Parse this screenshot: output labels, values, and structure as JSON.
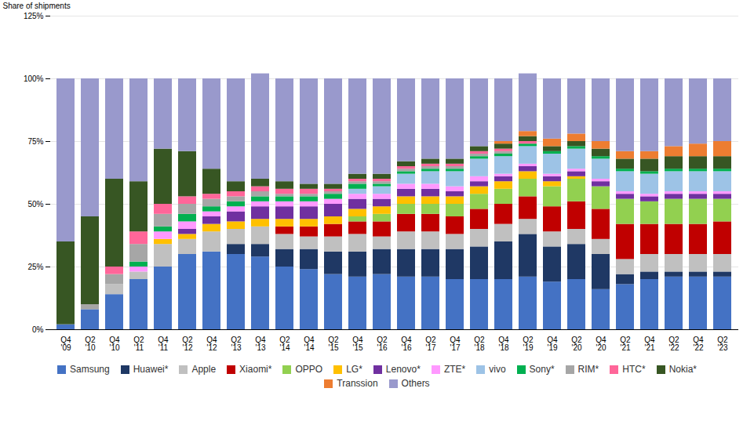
{
  "chart_data": {
    "type": "bar",
    "stacked": true,
    "categories": [
      "Q4\n'09",
      "Q2\n'10",
      "Q4\n'10",
      "Q2\n'11",
      "Q4\n'11",
      "Q2\n'12",
      "Q4\n'12",
      "Q2\n'13",
      "Q4\n'13",
      "Q2\n'14",
      "Q4\n'14",
      "Q2\n'15",
      "Q4\n'15",
      "Q2\n'16",
      "Q4\n'16",
      "Q2\n'17",
      "Q4\n'17",
      "Q2\n'18",
      "Q4\n'18",
      "Q2\n'19",
      "Q4\n'19",
      "Q2\n'20",
      "Q4\n'20",
      "Q2\n'21",
      "Q4\n'21",
      "Q2\n'22",
      "Q4\n'22",
      "Q2\n'23"
    ],
    "series": [
      {
        "name": "Samsung",
        "color": "#4472C4",
        "values": [
          2,
          8,
          14,
          20,
          25,
          30,
          31,
          30,
          29,
          25,
          24,
          22,
          21,
          22,
          21,
          21,
          20,
          20,
          20,
          21,
          19,
          20,
          16,
          18,
          20,
          21,
          21,
          21
        ]
      },
      {
        "name": "Huawei*",
        "color": "#1F3864",
        "values": [
          0,
          0,
          0,
          0,
          0,
          0,
          0,
          4,
          5,
          7,
          8,
          9,
          10,
          10,
          11,
          11,
          12,
          13,
          15,
          17,
          14,
          14,
          14,
          4,
          3,
          2,
          2,
          2
        ]
      },
      {
        "name": "Apple",
        "color": "#C0C0C0",
        "values": [
          0,
          0,
          4,
          3,
          9,
          6,
          8,
          6,
          7,
          6,
          5,
          6,
          7,
          5,
          7,
          7,
          6,
          7,
          7,
          6,
          6,
          6,
          6,
          6,
          7,
          7,
          7,
          7
        ]
      },
      {
        "name": "Xiaomi*",
        "color": "#C00000",
        "values": [
          0,
          0,
          0,
          0,
          0,
          0,
          0,
          0,
          0,
          3,
          4,
          5,
          5,
          6,
          7,
          7,
          7,
          8,
          8,
          9,
          10,
          11,
          12,
          14,
          12,
          12,
          12,
          13
        ]
      },
      {
        "name": "OPPO",
        "color": "#92D050",
        "values": [
          0,
          0,
          0,
          0,
          0,
          0,
          0,
          0,
          0,
          0,
          0,
          0,
          2,
          3,
          4,
          4,
          5,
          6,
          6,
          7,
          8,
          9,
          9,
          10,
          9,
          10,
          10,
          9
        ]
      },
      {
        "name": "LG*",
        "color": "#FFC000",
        "values": [
          0,
          0,
          0,
          0,
          2,
          2,
          3,
          3,
          3,
          3,
          3,
          3,
          3,
          3,
          3,
          3,
          3,
          3,
          3,
          3,
          2,
          1,
          0,
          0,
          0,
          0,
          0,
          0
        ]
      },
      {
        "name": "Lenovo*",
        "color": "#7030A0",
        "values": [
          0,
          0,
          0,
          0,
          0,
          2,
          3,
          4,
          5,
          5,
          5,
          5,
          4,
          3,
          3,
          3,
          2,
          2,
          2,
          2,
          2,
          2,
          2,
          2,
          2,
          2,
          2,
          2
        ]
      },
      {
        "name": "ZTE*",
        "color": "#FF99FF",
        "values": [
          0,
          0,
          0,
          2,
          3,
          3,
          2,
          2,
          2,
          2,
          2,
          2,
          2,
          2,
          2,
          2,
          2,
          2,
          1,
          1,
          1,
          1,
          1,
          1,
          1,
          1,
          1,
          1
        ]
      },
      {
        "name": "vivo",
        "color": "#9DC3E6",
        "values": [
          0,
          0,
          0,
          0,
          0,
          0,
          0,
          0,
          0,
          0,
          0,
          0,
          2,
          3,
          4,
          5,
          6,
          7,
          7,
          7,
          8,
          8,
          8,
          8,
          8,
          8,
          8,
          8
        ]
      },
      {
        "name": "Sony*",
        "color": "#00B050",
        "values": [
          0,
          0,
          0,
          2,
          2,
          3,
          2,
          2,
          2,
          2,
          2,
          2,
          2,
          1,
          1,
          1,
          1,
          1,
          1,
          1,
          1,
          1,
          1,
          1,
          1,
          1,
          1,
          1
        ]
      },
      {
        "name": "RIM*",
        "color": "#A6A6A6",
        "values": [
          0,
          2,
          4,
          7,
          5,
          4,
          3,
          2,
          2,
          1,
          1,
          1,
          1,
          1,
          1,
          1,
          1,
          1,
          1,
          0,
          0,
          0,
          0,
          0,
          0,
          0,
          0,
          0
        ]
      },
      {
        "name": "HTC*",
        "color": "#FF6699",
        "values": [
          0,
          0,
          3,
          5,
          4,
          3,
          2,
          2,
          2,
          2,
          2,
          1,
          1,
          1,
          1,
          1,
          1,
          1,
          1,
          1,
          0,
          0,
          0,
          0,
          0,
          0,
          0,
          0
        ]
      },
      {
        "name": "Nokia*",
        "color": "#375623",
        "values": [
          33,
          35,
          35,
          20,
          22,
          18,
          10,
          4,
          3,
          3,
          2,
          2,
          2,
          2,
          2,
          2,
          2,
          2,
          2,
          2,
          2,
          2,
          3,
          4,
          5,
          5,
          5,
          5
        ]
      },
      {
        "name": "Transsion",
        "color": "#ED7D31",
        "values": [
          0,
          0,
          0,
          0,
          0,
          0,
          0,
          0,
          0,
          0,
          0,
          0,
          0,
          0,
          0,
          0,
          0,
          0,
          1,
          2,
          3,
          3,
          3,
          3,
          3,
          4,
          5,
          6
        ]
      },
      {
        "name": "Others",
        "color": "#9999CC",
        "values": [
          65,
          55,
          40,
          41,
          28,
          29,
          36,
          41,
          42,
          41,
          42,
          42,
          38,
          38,
          33,
          32,
          32,
          27,
          25,
          23,
          24,
          22,
          25,
          29,
          29,
          27,
          26,
          25
        ]
      }
    ],
    "ylabel": "Share of shipments",
    "ylim": [
      0,
      125
    ],
    "yticks": [
      {
        "value": 0,
        "label": "0%"
      },
      {
        "value": 25,
        "label": "25%"
      },
      {
        "value": 50,
        "label": "50%"
      },
      {
        "value": 75,
        "label": "75%"
      },
      {
        "value": 100,
        "label": "100%"
      },
      {
        "value": 125,
        "label": "125%"
      }
    ],
    "grid": true,
    "legend": "bottom"
  }
}
